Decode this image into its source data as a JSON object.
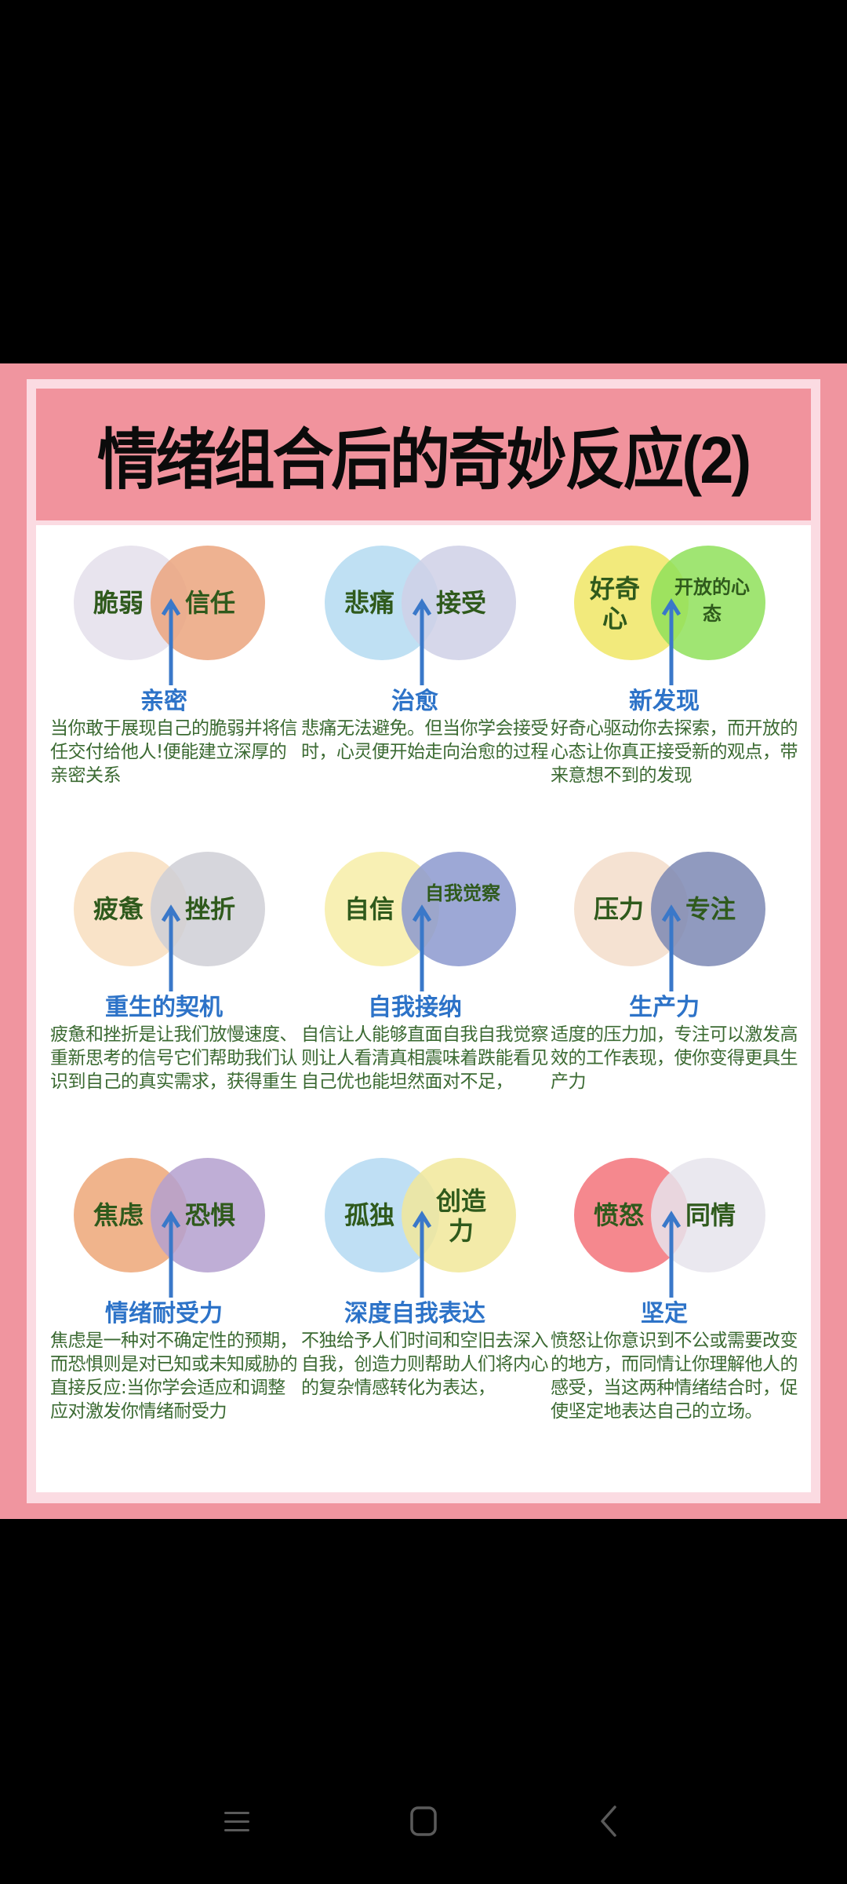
{
  "poster": {
    "title": "情绪组合后的奇妙反应(2)",
    "colors": {
      "outer_pink": "#f0959f",
      "frame_pink": "#fbdbe2",
      "title_band": "#f1939d",
      "concept_blue": "#2d73c8",
      "label_green": "#2f5a1c",
      "desc_green": "#3b6a32",
      "arrow_blue": "#3a78c9"
    },
    "cells": [
      {
        "left_emotion": "脆弱",
        "right_emotion": "信任",
        "left_color": "#e8e4ee",
        "right_color": "#eba57e",
        "result": "亲密",
        "description": "当你敢于展现自己的脆弱并将信任交付给他人!便能建立深厚的亲密关系"
      },
      {
        "left_emotion": "悲痛",
        "right_emotion": "接受",
        "left_color": "#bfe0f3",
        "right_color": "#cfd0e6",
        "result": "治愈",
        "description": "悲痛无法避免。但当你学会接受时，心灵便开始走向治愈的过程"
      },
      {
        "left_emotion": "好奇心",
        "right_emotion": "开放的心态",
        "left_color": "#f2ea7c",
        "right_color": "#8fe05a",
        "result": "新发现",
        "description": "好奇心驱动你去探索，而开放的心态让你真正接受新的观点，带来意想不到的发现"
      },
      {
        "left_emotion": "疲惫",
        "right_emotion": "挫折",
        "left_color": "#f9e3c8",
        "right_color": "#cfcfd6",
        "result": "重生的契机",
        "description": "疲惫和挫折是让我们放慢速度、重新思考的信号它们帮助我们认识到自己的真实需求，获得重生"
      },
      {
        "left_emotion": "自信",
        "right_emotion": "自我觉察",
        "left_color": "#f8f0b4",
        "right_color": "#8c99cf",
        "result": "自我接纳",
        "description": "自信让人能够直面自我自我觉察则让人看清真相震味着跌能看见自己优也能坦然面对不足，"
      },
      {
        "left_emotion": "压力",
        "right_emotion": "专注",
        "left_color": "#f5e2d2",
        "right_color": "#7d88b4",
        "result": "生产力",
        "description": "适度的压力加，专注可以激发高效的工作表现，使你变得更具生产力"
      },
      {
        "left_emotion": "焦虑",
        "right_emotion": "恐惧",
        "left_color": "#f0b48c",
        "right_color": "#b4a0cf",
        "result": "情绪耐受力",
        "description": "焦虑是一种对不确定性的预期，而恐惧则是对已知或未知威胁的直接反应:当你学会适应和调整应对激发你情绪耐受力"
      },
      {
        "left_emotion": "孤独",
        "right_emotion": "创造力",
        "left_color": "#bfdff4",
        "right_color": "#f1e79a",
        "result": "深度自我表达",
        "description": "不独给予人们时间和空旧去深入自我，创造力则帮助人们将内心的复杂情感转化为表达，"
      },
      {
        "left_emotion": "愤怒",
        "right_emotion": "同情",
        "left_color": "#f5888e",
        "right_color": "#e6e4ec",
        "result": "坚定",
        "description": "愤怒让你意识到不公或需要改变的地方，而同情让你理解他人的感受，当这两种情绪结合时，促使坚定地表达自己的立场。"
      }
    ]
  },
  "navbar": {
    "buttons": [
      {
        "name": "menu",
        "icon": "menu-icon"
      },
      {
        "name": "home",
        "icon": "home-square-icon"
      },
      {
        "name": "back",
        "icon": "back-chevron-icon"
      }
    ]
  }
}
